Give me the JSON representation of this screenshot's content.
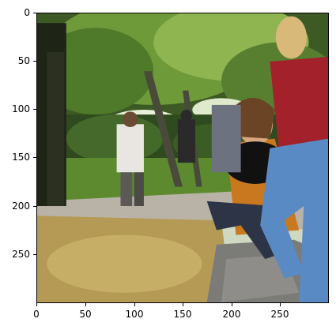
{
  "axes": {
    "x_ticks": [
      "0",
      "50",
      "100",
      "150",
      "200",
      "250"
    ],
    "y_ticks": [
      "0",
      "50",
      "100",
      "150",
      "200",
      "250"
    ]
  },
  "photo": {
    "subject": "park scene with people",
    "palette": {
      "foliage_dark": "#2f4a1e",
      "foliage_light": "#9cc45a",
      "lawn": "#5d8a2f",
      "path": "#b9b2a6",
      "leaves_ground": "#b59a55",
      "jeans": "#5a8ac4",
      "red_jacket": "#a3212a",
      "orange_jacket": "#c9781f",
      "rock": "#7b7b78"
    }
  }
}
